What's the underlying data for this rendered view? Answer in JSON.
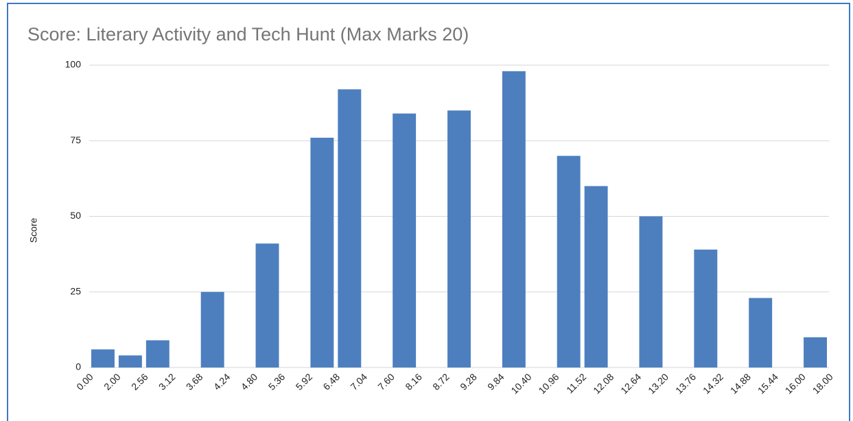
{
  "chart_data": {
    "type": "histogram",
    "title": "Score: Literary Activity and Tech Hunt (Max Marks 20)",
    "y_label": "Score",
    "bins": [
      "0.00",
      "2.00",
      "2.56",
      "3.12",
      "3.68",
      "4.24",
      "4.80",
      "5.36",
      "5.92",
      "6.48",
      "7.04",
      "7.60",
      "8.16",
      "8.72",
      "9.28",
      "9.84",
      "10.40",
      "10.96",
      "11.52",
      "12.08",
      "12.64",
      "13.20",
      "13.76",
      "14.32",
      "14.88",
      "15.44",
      "16.00",
      "18.00"
    ],
    "values": [
      6,
      4,
      9,
      0,
      25,
      0,
      41,
      0,
      76,
      92,
      0,
      84,
      0,
      85,
      0,
      98,
      0,
      70,
      60,
      0,
      50,
      0,
      39,
      0,
      23,
      0,
      10
    ],
    "color": "#4d7fbf",
    "ylim": [
      0,
      100
    ],
    "yticks": [
      0,
      25,
      50,
      75,
      100
    ],
    "grid": true
  }
}
